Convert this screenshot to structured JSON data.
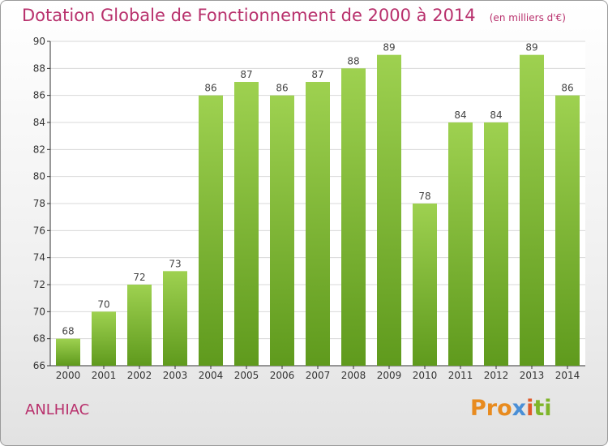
{
  "header": {
    "title": "Dotation Globale de Fonctionnement de 2000 à 2014",
    "unit": "(en milliers d'€)"
  },
  "footer": {
    "place": "ANLHIAC",
    "logo_parts": [
      "Pro",
      "x",
      "i",
      "ti"
    ]
  },
  "colors": {
    "title": "#b8306c",
    "bar_light": "#9ed150",
    "bar_dark": "#5f9a1d",
    "grid": "#d8d8d8",
    "axis": "#333333"
  },
  "chart_data": {
    "type": "bar",
    "title": "Dotation Globale de Fonctionnement de 2000 à 2014",
    "subtitle": "(en milliers d'€)",
    "xlabel": "",
    "ylabel": "",
    "categories": [
      "2000",
      "2001",
      "2002",
      "2003",
      "2004",
      "2005",
      "2006",
      "2007",
      "2008",
      "2009",
      "2010",
      "2011",
      "2012",
      "2013",
      "2014"
    ],
    "values": [
      68,
      70,
      72,
      73,
      86,
      87,
      86,
      87,
      88,
      89,
      78,
      84,
      84,
      89,
      86
    ],
    "ylim": [
      66,
      90
    ],
    "yticks": [
      66,
      68,
      70,
      72,
      74,
      76,
      78,
      80,
      82,
      84,
      86,
      88,
      90
    ],
    "grid": true,
    "data_labels": true
  }
}
